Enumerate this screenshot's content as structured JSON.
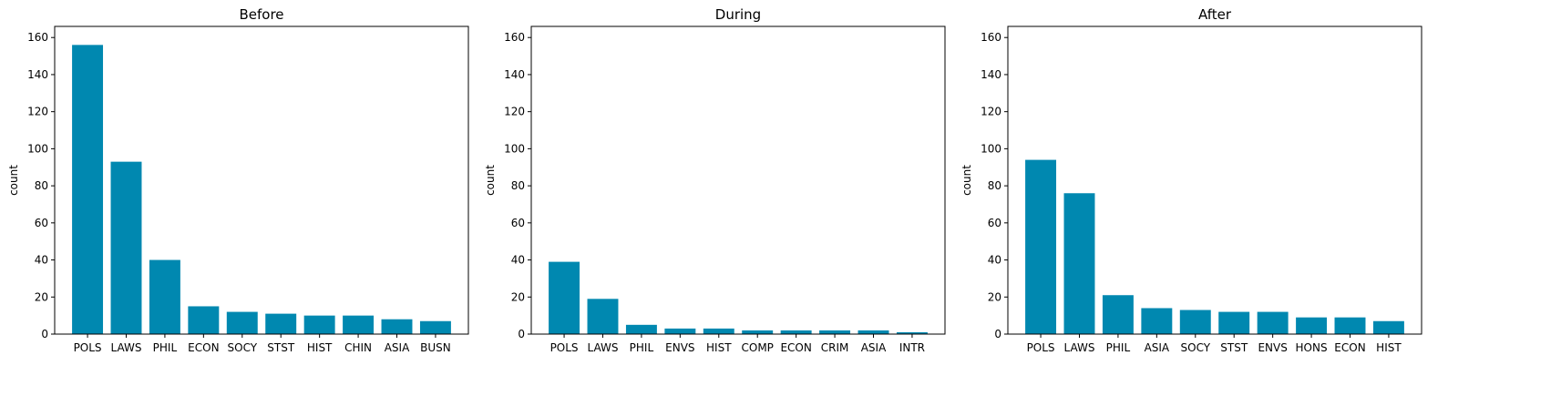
{
  "chart_data": [
    {
      "type": "bar",
      "title": "Before",
      "ylabel": "count",
      "xlabel": "",
      "ylim": [
        0,
        166
      ],
      "yticks": [
        0,
        20,
        40,
        60,
        80,
        100,
        120,
        140,
        160
      ],
      "categories": [
        "POLS",
        "LAWS",
        "PHIL",
        "ECON",
        "SOCY",
        "STST",
        "HIST",
        "CHIN",
        "ASIA",
        "BUSN"
      ],
      "values": [
        156,
        93,
        40,
        15,
        12,
        11,
        10,
        10,
        8,
        7
      ],
      "color": "#0088b0",
      "grid": false
    },
    {
      "type": "bar",
      "title": "During",
      "ylabel": "count",
      "xlabel": "",
      "ylim": [
        0,
        166
      ],
      "yticks": [
        0,
        20,
        40,
        60,
        80,
        100,
        120,
        140,
        160
      ],
      "categories": [
        "POLS",
        "LAWS",
        "PHIL",
        "ENVS",
        "HIST",
        "COMP",
        "ECON",
        "CRIM",
        "ASIA",
        "INTR"
      ],
      "values": [
        39,
        19,
        5,
        3,
        3,
        2,
        2,
        2,
        2,
        1
      ],
      "color": "#0088b0",
      "grid": false
    },
    {
      "type": "bar",
      "title": "After",
      "ylabel": "count",
      "xlabel": "",
      "ylim": [
        0,
        166
      ],
      "yticks": [
        0,
        20,
        40,
        60,
        80,
        100,
        120,
        140,
        160
      ],
      "categories": [
        "POLS",
        "LAWS",
        "PHIL",
        "ASIA",
        "SOCY",
        "STST",
        "ENVS",
        "HONS",
        "ECON",
        "HIST"
      ],
      "values": [
        94,
        76,
        21,
        14,
        13,
        12,
        12,
        9,
        9,
        7
      ],
      "color": "#0088b0",
      "grid": false
    }
  ]
}
